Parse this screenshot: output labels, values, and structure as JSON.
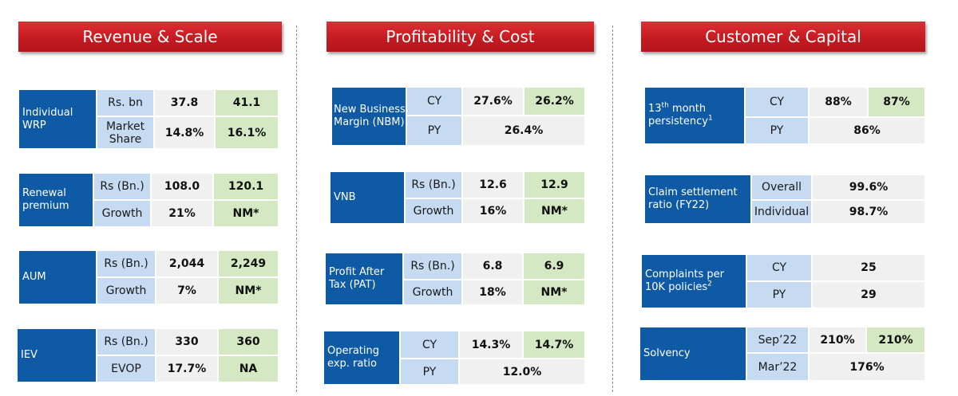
{
  "sections": {
    "revenue": "Revenue & Scale",
    "profitability": "Profitability & Cost",
    "customer": "Customer & Capital"
  },
  "revenue": {
    "wrp": {
      "label": "Individual WRP",
      "unit1": "Rs. bn",
      "v1a": "37.8",
      "v1b": "41.1",
      "unit2": "Market Share",
      "v2a": "14.8%",
      "v2b": "16.1%"
    },
    "renewal": {
      "label": "Renewal premium",
      "unit1": "Rs (Bn.)",
      "v1a": "108.0",
      "v1b": "120.1",
      "unit2": "Growth",
      "v2a": "21%",
      "v2b": "NM*"
    },
    "aum": {
      "label": "AUM",
      "unit1": "Rs (Bn.)",
      "v1a": "2,044",
      "v1b": "2,249",
      "unit2": "Growth",
      "v2a": "7%",
      "v2b": "NM*"
    },
    "iev": {
      "label": "IEV",
      "unit1": "Rs (Bn.)",
      "v1a": "330",
      "v1b": "360",
      "unit2": "EVOP",
      "v2a": "17.7%",
      "v2b": "NA"
    }
  },
  "profitability": {
    "nbm": {
      "label": "New Business Margin (NBM)",
      "unit1": "CY",
      "v1a": "27.6%",
      "v1b": "26.2%",
      "unit2": "PY",
      "v2": "26.4%"
    },
    "vnb": {
      "label": "VNB",
      "unit1": "Rs (Bn.)",
      "v1a": "12.6",
      "v1b": "12.9",
      "unit2": "Growth",
      "v2a": "16%",
      "v2b": "NM*"
    },
    "pat": {
      "label": "Profit After Tax (PAT)",
      "unit1": "Rs (Bn.)",
      "v1a": "6.8",
      "v1b": "6.9",
      "unit2": "Growth",
      "v2a": "18%",
      "v2b": "NM*"
    },
    "opex": {
      "label": "Operating exp. ratio",
      "unit1": "CY",
      "v1a": "14.3%",
      "v1b": "14.7%",
      "unit2": "PY",
      "v2": "12.0%"
    }
  },
  "customer": {
    "persistency": {
      "label_sup_pre": "13",
      "label_sup": "th",
      "label_mid": " month persistency",
      "label_note": "1",
      "unit1": "CY",
      "v1a": "88%",
      "v1b": "87%",
      "unit2": "PY",
      "v2": "86%"
    },
    "claims": {
      "label": "Claim settlement ratio (FY22)",
      "unit1": "Overall",
      "v1": "99.6%",
      "unit2": "Individual",
      "v2": "98.7%"
    },
    "complaints": {
      "label": "Complaints per 10K policies",
      "label_note": "2",
      "unit1": "CY",
      "v1": "25",
      "unit2": "PY",
      "v2": "29"
    },
    "solvency": {
      "label": "Solvency",
      "unit1": "Sep’22",
      "v1a": "210%",
      "v1b": "210%",
      "unit2": "Mar’22",
      "v2": "176%"
    }
  }
}
